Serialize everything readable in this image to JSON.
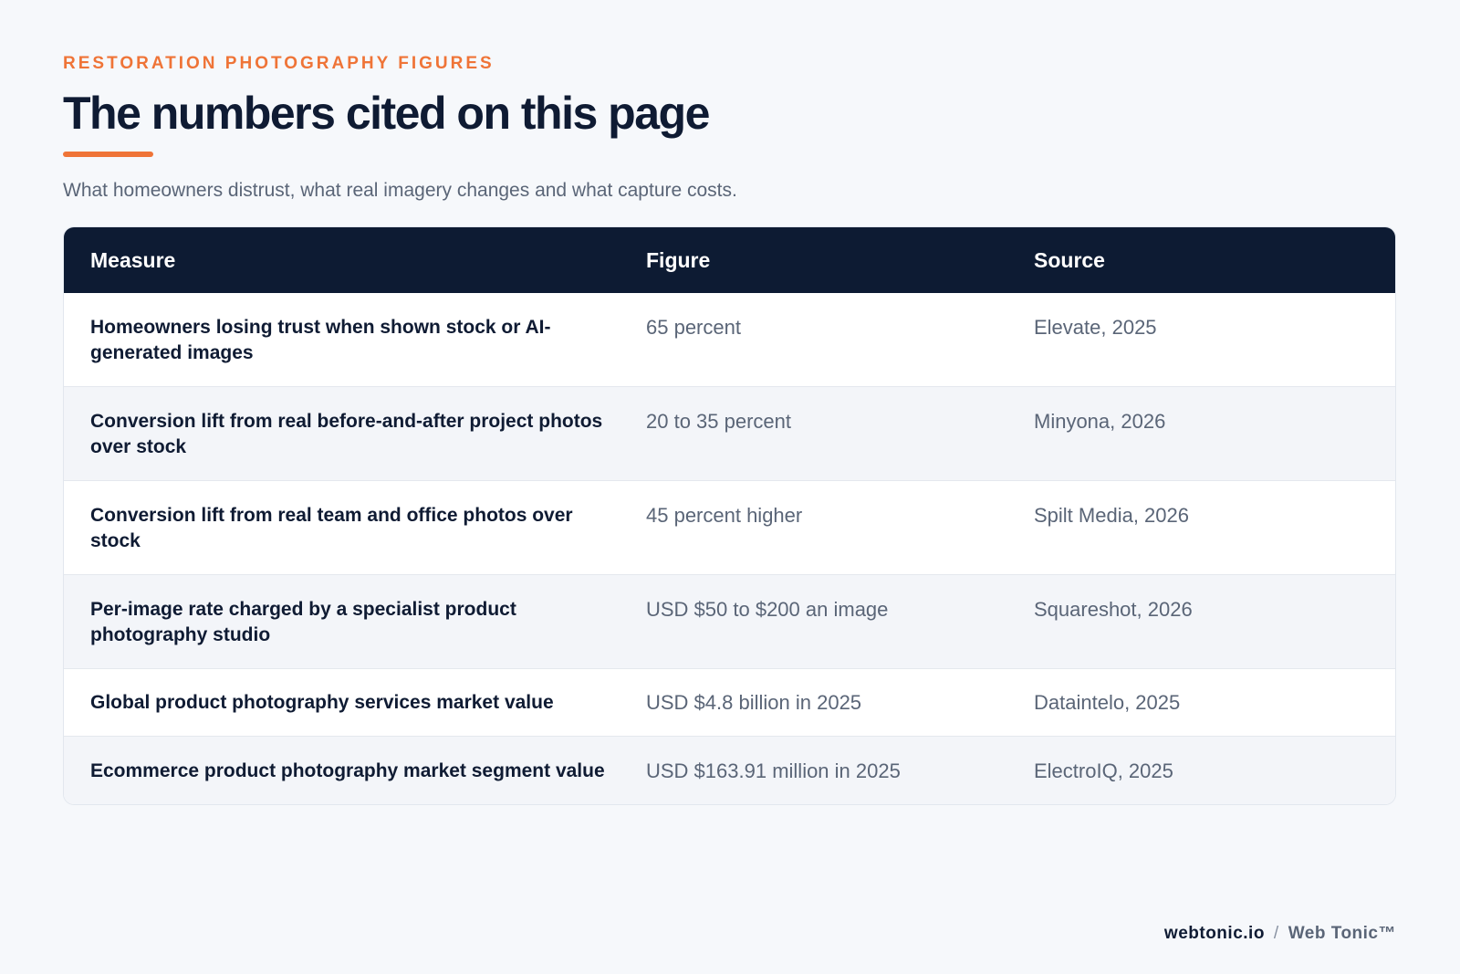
{
  "header": {
    "eyebrow": "RESTORATION PHOTOGRAPHY FIGURES",
    "title": "The numbers cited on this page",
    "subtitle": "What homeowners distrust, what real imagery changes and what capture costs."
  },
  "table": {
    "columns": [
      "Measure",
      "Figure",
      "Source"
    ],
    "rows": [
      {
        "measure": "Homeowners losing trust when shown stock or AI-generated images",
        "figure": "65 percent",
        "source": "Elevate, 2025"
      },
      {
        "measure": "Conversion lift from real before-and-after project photos over stock",
        "figure": "20 to 35 percent",
        "source": "Minyona, 2026"
      },
      {
        "measure": "Conversion lift from real team and office photos over stock",
        "figure": "45 percent higher",
        "source": "Spilt Media, 2026"
      },
      {
        "measure": "Per-image rate charged by a specialist product photography studio",
        "figure": "USD $50 to $200 an image",
        "source": "Squareshot, 2026"
      },
      {
        "measure": "Global product photography services market value",
        "figure": "USD $4.8 billion in 2025",
        "source": "Dataintelo, 2025"
      },
      {
        "measure": "Ecommerce product photography market segment value",
        "figure": "USD $163.91 million in 2025",
        "source": "ElectroIQ, 2025"
      }
    ]
  },
  "footer": {
    "site": "webtonic.io",
    "separator": "/",
    "brand": "Web Tonic™"
  },
  "colors": {
    "accent": "#ef7437",
    "header_bg": "#0d1b33",
    "text_dark": "#0f1b33",
    "text_muted": "#5a6577"
  }
}
